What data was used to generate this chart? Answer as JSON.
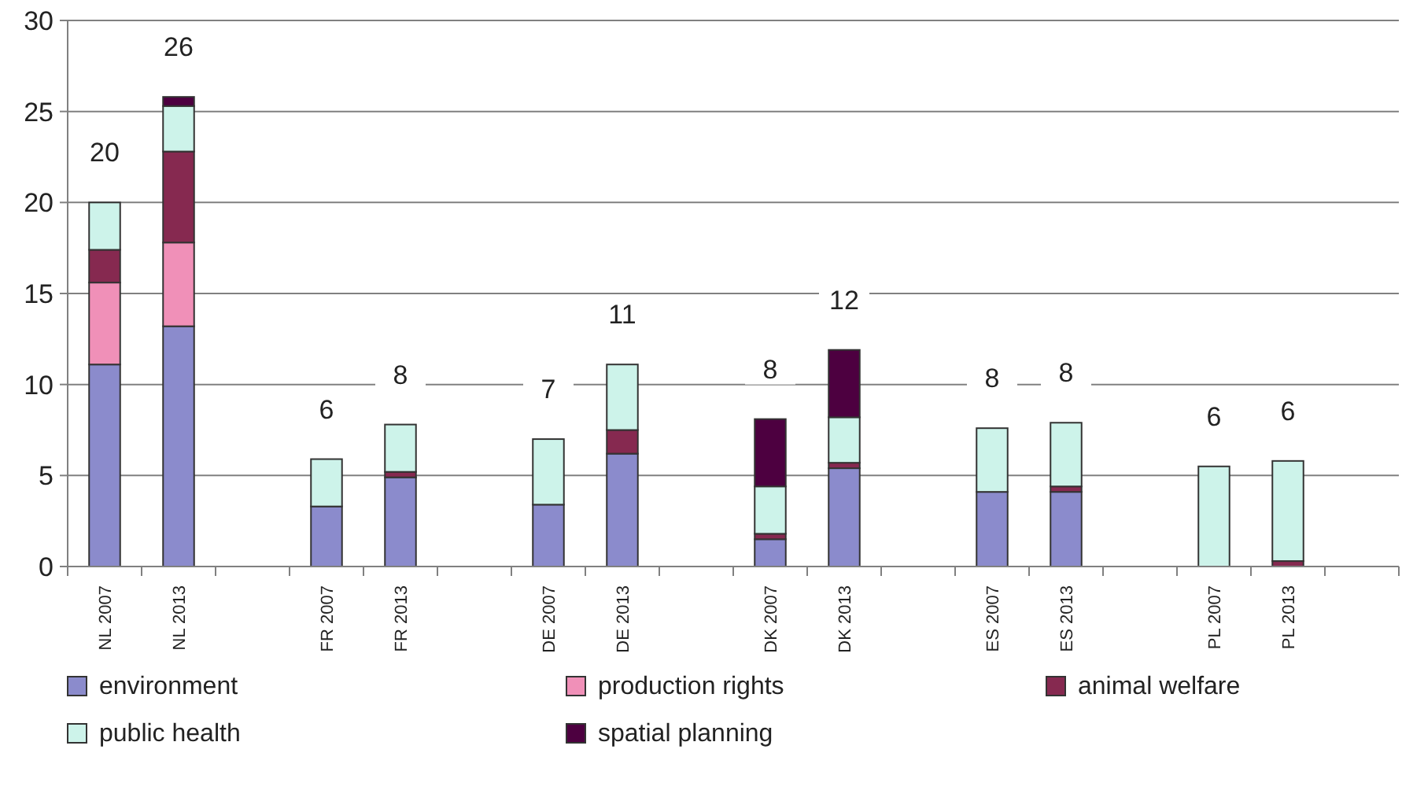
{
  "chart_data": {
    "type": "bar",
    "stacked": true,
    "categories": [
      "NL 2007",
      "NL 2013",
      null,
      "FR 2007",
      "FR 2013",
      null,
      "DE 2007",
      "DE 2013",
      null,
      "DK 2007",
      "DK 2013",
      null,
      "ES 2007",
      "ES 2013",
      null,
      "PL 2007",
      "PL 2013",
      null
    ],
    "series": [
      {
        "name": "environment",
        "color": "#8b8bcc",
        "values": [
          11.1,
          13.2,
          null,
          3.3,
          4.9,
          null,
          3.4,
          6.2,
          null,
          1.5,
          5.4,
          null,
          4.1,
          4.1,
          null,
          0,
          0,
          null
        ]
      },
      {
        "name": "production rights",
        "color": "#f090b8",
        "values": [
          4.5,
          4.6,
          null,
          0,
          0,
          null,
          0,
          0,
          null,
          0,
          0,
          null,
          0,
          0,
          null,
          0,
          0,
          null
        ]
      },
      {
        "name": "animal welfare",
        "color": "#862950",
        "values": [
          1.8,
          5.0,
          null,
          0,
          0.3,
          null,
          0,
          1.3,
          null,
          0.3,
          0.3,
          null,
          0,
          0.3,
          null,
          0,
          0.3,
          null
        ]
      },
      {
        "name": "public health",
        "color": "#cdf3ea",
        "values": [
          2.6,
          2.5,
          null,
          2.6,
          2.6,
          null,
          3.6,
          3.6,
          null,
          2.6,
          2.5,
          null,
          3.5,
          3.5,
          null,
          5.5,
          5.5,
          null
        ]
      },
      {
        "name": "spatial planning",
        "color": "#4d0040",
        "values": [
          0,
          0.5,
          null,
          0,
          0,
          null,
          0,
          0,
          null,
          3.7,
          3.7,
          null,
          0,
          0,
          null,
          0,
          0,
          null
        ]
      }
    ],
    "totals": [
      "20",
      "26",
      null,
      "6",
      "8",
      null,
      "7",
      "11",
      null,
      "8",
      "12",
      null,
      "8",
      "8",
      null,
      "6",
      "6",
      null
    ],
    "ylim": [
      0,
      30
    ],
    "yticks": [
      0,
      5,
      10,
      15,
      20,
      25,
      30
    ],
    "grid": "y",
    "legend": "bottom"
  }
}
